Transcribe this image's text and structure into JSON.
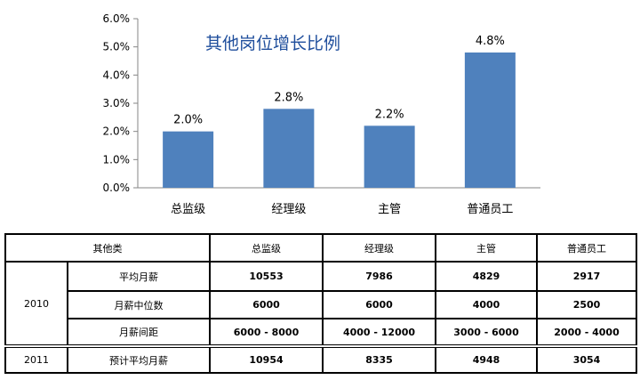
{
  "chart_data": {
    "type": "bar",
    "title": "其他岗位增长比例",
    "categories": [
      "总监级",
      "经理级",
      "主管",
      "普通员工"
    ],
    "values": [
      2.0,
      2.8,
      2.2,
      4.8
    ],
    "value_labels": [
      "2.0%",
      "2.8%",
      "2.2%",
      "4.8%"
    ],
    "ylim": [
      0,
      6
    ],
    "yticks": [
      "0.0%",
      "1.0%",
      "2.0%",
      "3.0%",
      "4.0%",
      "5.0%",
      "6.0%"
    ],
    "grid": false,
    "legend": "none",
    "bar_color": "#4f81bd",
    "title_color": "#1f4e9c"
  },
  "table": {
    "corner_header": "其他类",
    "columns": [
      "总监级",
      "经理级",
      "主管",
      "普通员工"
    ],
    "groups": [
      {
        "year": "2010",
        "rows": [
          {
            "label": "平均月薪",
            "values": [
              "10553",
              "7986",
              "4829",
              "2917"
            ]
          },
          {
            "label": "月薪中位数",
            "values": [
              "6000",
              "6000",
              "4000",
              "2500"
            ]
          },
          {
            "label": "月薪间距",
            "values": [
              "6000 - 8000",
              "4000 - 12000",
              "3000 - 6000",
              "2000 - 4000"
            ]
          }
        ]
      },
      {
        "year": "2011",
        "rows": [
          {
            "label": "预计平均月薪",
            "values": [
              "10954",
              "8335",
              "4948",
              "3054"
            ]
          }
        ]
      }
    ]
  }
}
